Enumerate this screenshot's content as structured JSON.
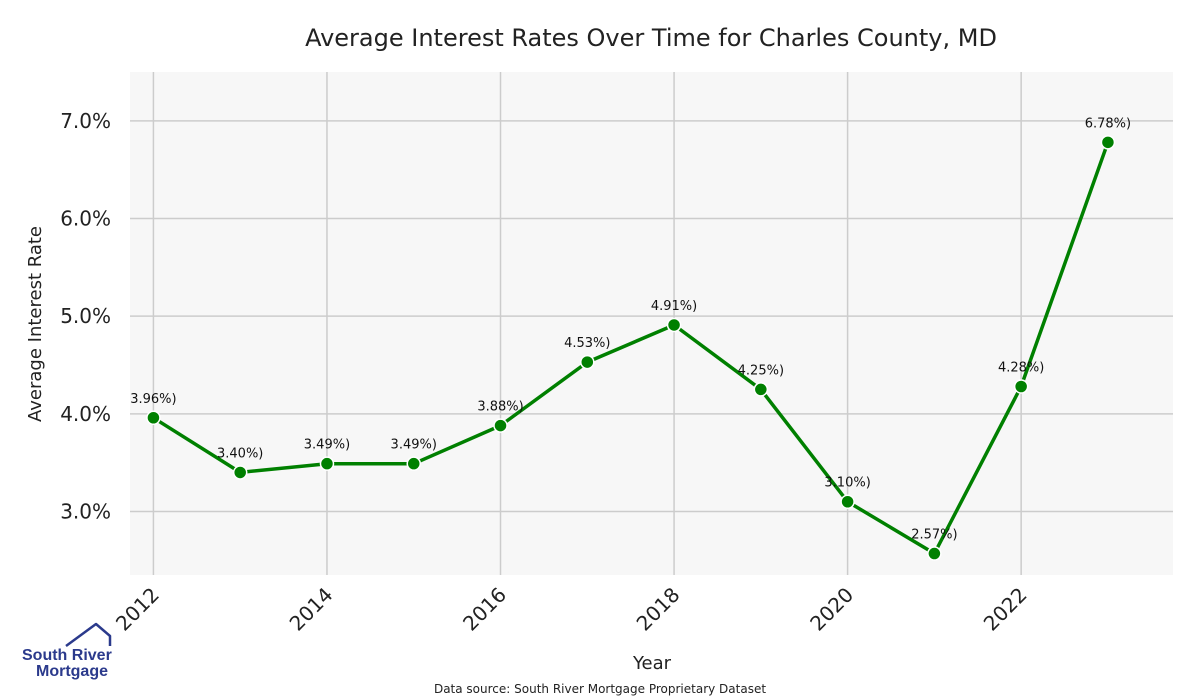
{
  "chart_data": {
    "type": "line",
    "title": "Average Interest Rates Over Time for Charles County, MD",
    "xlabel": "Year",
    "ylabel": "Average Interest Rate",
    "x": [
      2012,
      2013,
      2014,
      2015,
      2016,
      2017,
      2018,
      2019,
      2020,
      2021,
      2022,
      2023
    ],
    "values": [
      3.96,
      3.4,
      3.49,
      3.49,
      3.88,
      4.53,
      4.91,
      4.25,
      3.1,
      2.57,
      4.28,
      6.78
    ],
    "data_labels": [
      "3.96%)",
      "3.40%)",
      "3.49%)",
      "3.49%)",
      "3.88%)",
      "4.53%)",
      "4.91%)",
      "4.25%)",
      "3.10%)",
      "2.57%)",
      "4.28%)",
      "6.78%)"
    ],
    "x_ticks": [
      2012,
      2014,
      2016,
      2018,
      2020,
      2022
    ],
    "x_tick_labels": [
      "2012",
      "2014",
      "2016",
      "2018",
      "2020",
      "2022"
    ],
    "y_ticks": [
      3.0,
      4.0,
      5.0,
      6.0,
      7.0
    ],
    "y_tick_labels": [
      "3.0%",
      "4.0%",
      "5.0%",
      "6.0%",
      "7.0%"
    ],
    "xlim": [
      2011.73,
      2023.75
    ],
    "ylim": [
      2.35,
      7.5
    ],
    "grid": true,
    "line_color": "#008000",
    "plot_background": "#f7f7f7",
    "grid_color": "#cccccc"
  },
  "source_note": "Data source: South River Mortgage Proprietary Dataset",
  "logo": {
    "line1": "South River",
    "line2": "Mortgage",
    "color": "#2b3a8c"
  }
}
